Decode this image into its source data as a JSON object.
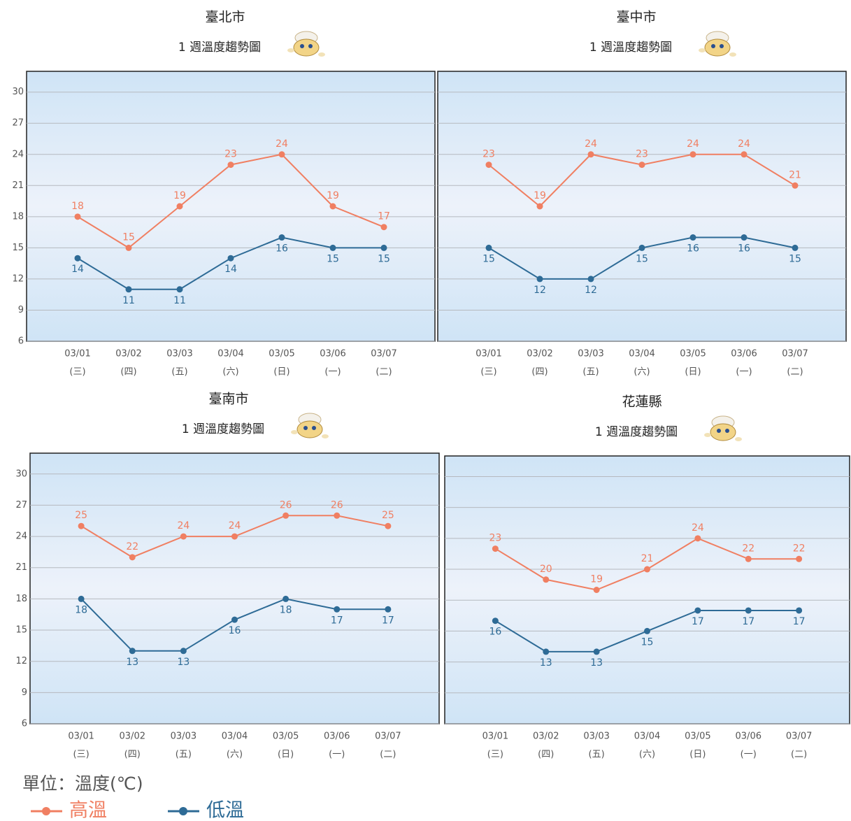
{
  "chart_data": [
    {
      "type": "line",
      "title": "臺北市",
      "subtitle": "1 週溫度趨勢圖",
      "categories": [
        "03/01",
        "03/02",
        "03/03",
        "03/04",
        "03/05",
        "03/06",
        "03/07"
      ],
      "category_sublabels": [
        "(三)",
        "(四)",
        "(五)",
        "(六)",
        "(日)",
        "(一)",
        "(二)"
      ],
      "series": [
        {
          "values": [
            18,
            15,
            19,
            23,
            24,
            19,
            17
          ]
        },
        {
          "values": [
            14,
            11,
            11,
            14,
            16,
            15,
            15
          ]
        }
      ],
      "ylim": [
        6,
        32
      ],
      "yticks": [
        6,
        9,
        12,
        15,
        18,
        21,
        24,
        27,
        30
      ],
      "ytick_labels": true,
      "grid": true
    },
    {
      "type": "line",
      "title": "臺中市",
      "subtitle": "1 週溫度趨勢圖",
      "categories": [
        "03/01",
        "03/02",
        "03/03",
        "03/04",
        "03/05",
        "03/06",
        "03/07"
      ],
      "category_sublabels": [
        "(三)",
        "(四)",
        "(五)",
        "(六)",
        "(日)",
        "(一)",
        "(二)"
      ],
      "series": [
        {
          "values": [
            23,
            19,
            24,
            23,
            24,
            24,
            21
          ]
        },
        {
          "values": [
            15,
            12,
            12,
            15,
            16,
            16,
            15
          ]
        }
      ],
      "ylim": [
        6,
        32
      ],
      "yticks": [
        6,
        9,
        12,
        15,
        18,
        21,
        24,
        27,
        30
      ],
      "ytick_labels": false,
      "grid": true
    },
    {
      "type": "line",
      "title": "臺南市",
      "subtitle": "1 週溫度趨勢圖",
      "categories": [
        "03/01",
        "03/02",
        "03/03",
        "03/04",
        "03/05",
        "03/06",
        "03/07"
      ],
      "category_sublabels": [
        "(三)",
        "(四)",
        "(五)",
        "(六)",
        "(日)",
        "(一)",
        "(二)"
      ],
      "series": [
        {
          "values": [
            25,
            22,
            24,
            24,
            26,
            26,
            25
          ]
        },
        {
          "values": [
            18,
            13,
            13,
            16,
            18,
            17,
            17
          ]
        }
      ],
      "ylim": [
        6,
        32
      ],
      "yticks": [
        6,
        9,
        12,
        15,
        18,
        21,
        24,
        27,
        30
      ],
      "ytick_labels": true,
      "grid": true
    },
    {
      "type": "line",
      "title": "花蓮縣",
      "subtitle": "1 週溫度趨勢圖",
      "categories": [
        "03/01",
        "03/02",
        "03/03",
        "03/04",
        "03/05",
        "03/06",
        "03/07"
      ],
      "category_sublabels": [
        "(三)",
        "(四)",
        "(五)",
        "(六)",
        "(日)",
        "(一)",
        "(二)"
      ],
      "series": [
        {
          "values": [
            23,
            20,
            19,
            21,
            24,
            22,
            22
          ]
        },
        {
          "values": [
            16,
            13,
            13,
            15,
            17,
            17,
            17
          ]
        }
      ],
      "ylim": [
        6,
        32
      ],
      "yticks": [
        6,
        9,
        12,
        15,
        18,
        21,
        24,
        27,
        30
      ],
      "ytick_labels": false,
      "grid": true
    }
  ],
  "legend": {
    "unit": "單位：溫度(℃)",
    "items": [
      {
        "name": "高溫",
        "color": "#f07f62"
      },
      {
        "name": "低溫",
        "color": "#2e6b96"
      }
    ]
  }
}
